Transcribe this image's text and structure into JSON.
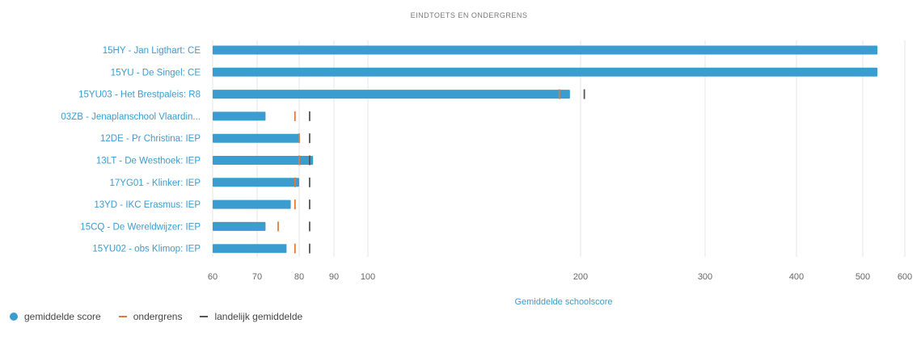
{
  "chart_data": {
    "type": "bar",
    "orientation": "horizontal",
    "title": "EINDTOETS EN ONDERGRENS",
    "xlabel": "Gemiddelde schoolscore",
    "xscale": "piecewise-linear",
    "xlim": [
      60,
      600
    ],
    "xticks": [
      "60",
      "70",
      "80",
      "90",
      "100",
      "200",
      "300",
      "400",
      "500",
      "600"
    ],
    "grid": true,
    "legend_position": "bottom-left",
    "categories": [
      "15HY - Jan Ligthart: CE",
      "15YU - De Singel: CE",
      "15YU03 - Het Brestpaleis: R8",
      "03ZB - Jenaplanschool Vlaardin...",
      "12DE - Pr Christina: IEP",
      "13LT - De Westhoek: IEP",
      "17YG01 - Klinker: IEP",
      "13YD - IKC Erasmus: IEP",
      "15CQ - De Wereldwijzer: IEP",
      "15YU02 - obs Klimop: IEP"
    ],
    "series": [
      {
        "name": "gemiddelde score",
        "values": [
          535,
          535,
          195,
          72,
          80,
          84,
          80,
          78,
          72,
          77
        ],
        "color": "#3a9ccf"
      },
      {
        "name": "ondergrens",
        "values": [
          null,
          null,
          190,
          79,
          80,
          80,
          79,
          79,
          75,
          79
        ],
        "color": "#e07a3c"
      },
      {
        "name": "landelijk gemiddelde",
        "values": [
          null,
          null,
          203,
          83,
          83,
          83,
          83,
          83,
          83,
          83
        ],
        "color": "#555555"
      }
    ]
  }
}
